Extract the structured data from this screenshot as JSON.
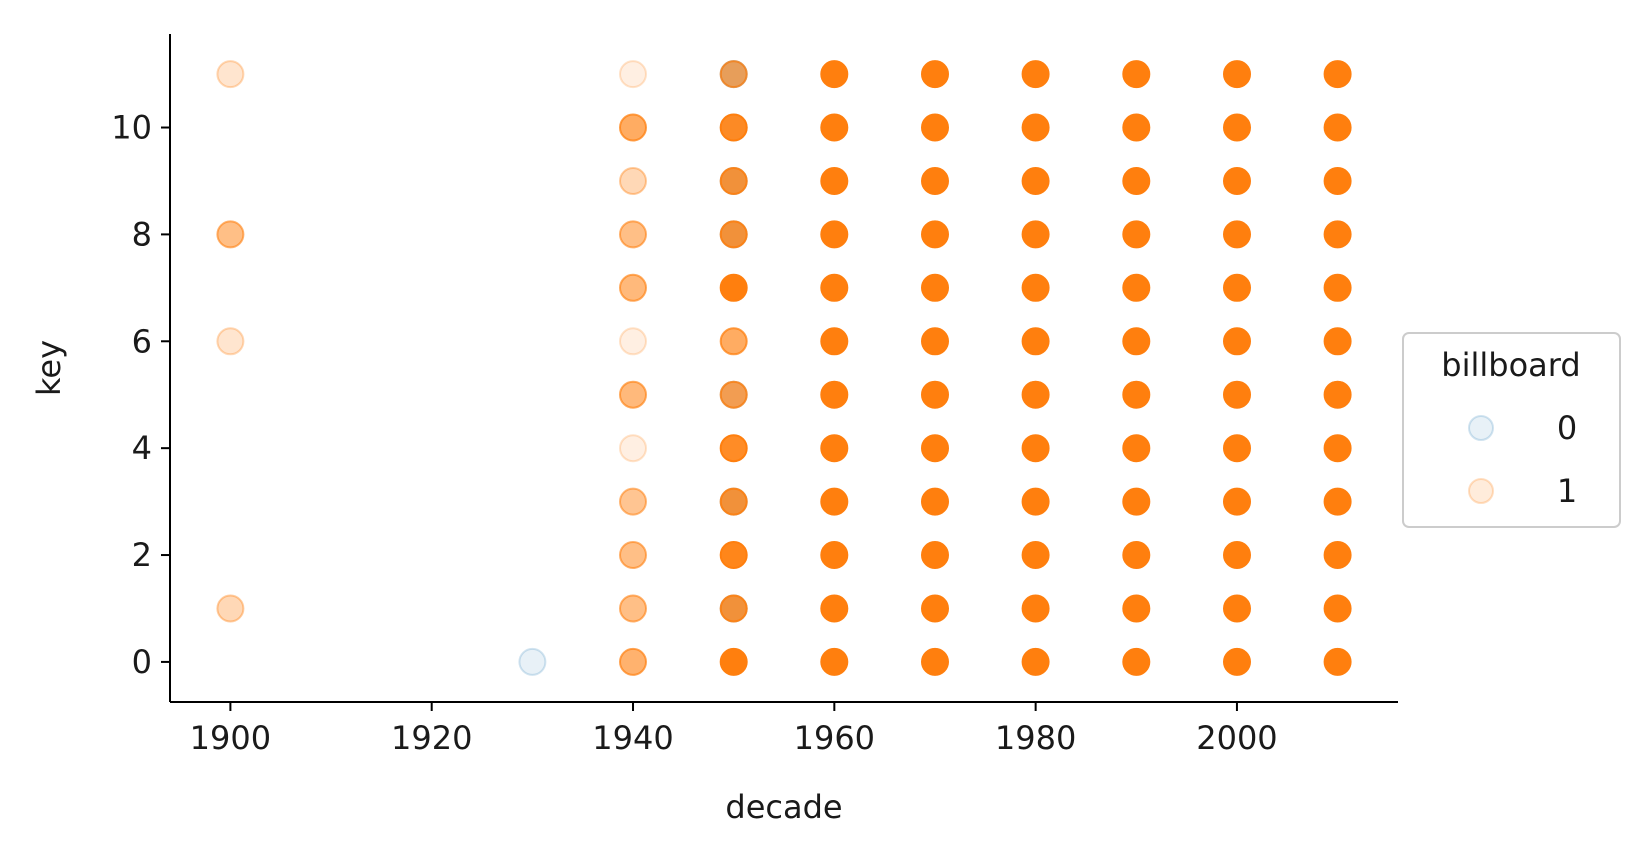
{
  "chart_data": {
    "type": "scatter",
    "xlabel": "decade",
    "ylabel": "key",
    "xlim": [
      1894,
      2016
    ],
    "ylim": [
      -0.75,
      11.75
    ],
    "xticks": [
      1900,
      1920,
      1940,
      1960,
      1980,
      2000
    ],
    "yticks": [
      0,
      2,
      4,
      6,
      8,
      10
    ],
    "grid": false,
    "legend": {
      "title": "billboard",
      "placement": "center-right outside"
    },
    "series": [
      {
        "name": "0",
        "color": "#1f77b4",
        "points": [
          {
            "x": 1930,
            "y": 0,
            "alpha": 0.1
          },
          {
            "x": 1950,
            "y": 1,
            "alpha": 0.3
          },
          {
            "x": 1950,
            "y": 3,
            "alpha": 0.3
          },
          {
            "x": 1950,
            "y": 5,
            "alpha": 0.2
          },
          {
            "x": 1950,
            "y": 8,
            "alpha": 0.3
          },
          {
            "x": 1950,
            "y": 9,
            "alpha": 0.3
          },
          {
            "x": 1950,
            "y": 10,
            "alpha": 0.15
          },
          {
            "x": 1950,
            "y": 11,
            "alpha": 0.3
          }
        ]
      },
      {
        "name": "1",
        "color": "#ff7f0e",
        "points": [
          {
            "x": 1900,
            "y": 1,
            "alpha": 0.3
          },
          {
            "x": 1900,
            "y": 6,
            "alpha": 0.2
          },
          {
            "x": 1900,
            "y": 8,
            "alpha": 0.5
          },
          {
            "x": 1900,
            "y": 11,
            "alpha": 0.2
          },
          {
            "x": 1940,
            "y": 0,
            "alpha": 0.6
          },
          {
            "x": 1940,
            "y": 1,
            "alpha": 0.5
          },
          {
            "x": 1940,
            "y": 2,
            "alpha": 0.5
          },
          {
            "x": 1940,
            "y": 3,
            "alpha": 0.45
          },
          {
            "x": 1940,
            "y": 4,
            "alpha": 0.12
          },
          {
            "x": 1940,
            "y": 5,
            "alpha": 0.55
          },
          {
            "x": 1940,
            "y": 6,
            "alpha": 0.12
          },
          {
            "x": 1940,
            "y": 7,
            "alpha": 0.55
          },
          {
            "x": 1940,
            "y": 8,
            "alpha": 0.5
          },
          {
            "x": 1940,
            "y": 9,
            "alpha": 0.3
          },
          {
            "x": 1940,
            "y": 10,
            "alpha": 0.65
          },
          {
            "x": 1940,
            "y": 11,
            "alpha": 0.12
          },
          {
            "x": 1950,
            "y": 0,
            "alpha": 1
          },
          {
            "x": 1950,
            "y": 1,
            "alpha": 0.8
          },
          {
            "x": 1950,
            "y": 2,
            "alpha": 0.95
          },
          {
            "x": 1950,
            "y": 3,
            "alpha": 0.8
          },
          {
            "x": 1950,
            "y": 4,
            "alpha": 0.9
          },
          {
            "x": 1950,
            "y": 5,
            "alpha": 0.7
          },
          {
            "x": 1950,
            "y": 6,
            "alpha": 0.65
          },
          {
            "x": 1950,
            "y": 7,
            "alpha": 1
          },
          {
            "x": 1950,
            "y": 8,
            "alpha": 0.8
          },
          {
            "x": 1950,
            "y": 9,
            "alpha": 0.8
          },
          {
            "x": 1950,
            "y": 10,
            "alpha": 0.9
          },
          {
            "x": 1950,
            "y": 11,
            "alpha": 0.65
          },
          {
            "x": 1960,
            "y": 0
          },
          {
            "x": 1960,
            "y": 1
          },
          {
            "x": 1960,
            "y": 2
          },
          {
            "x": 1960,
            "y": 3
          },
          {
            "x": 1960,
            "y": 4
          },
          {
            "x": 1960,
            "y": 5
          },
          {
            "x": 1960,
            "y": 6
          },
          {
            "x": 1960,
            "y": 7
          },
          {
            "x": 1960,
            "y": 8
          },
          {
            "x": 1960,
            "y": 9
          },
          {
            "x": 1960,
            "y": 10
          },
          {
            "x": 1960,
            "y": 11
          },
          {
            "x": 1970,
            "y": 0
          },
          {
            "x": 1970,
            "y": 1
          },
          {
            "x": 1970,
            "y": 2
          },
          {
            "x": 1970,
            "y": 3
          },
          {
            "x": 1970,
            "y": 4
          },
          {
            "x": 1970,
            "y": 5
          },
          {
            "x": 1970,
            "y": 6
          },
          {
            "x": 1970,
            "y": 7
          },
          {
            "x": 1970,
            "y": 8
          },
          {
            "x": 1970,
            "y": 9
          },
          {
            "x": 1970,
            "y": 10
          },
          {
            "x": 1970,
            "y": 11
          },
          {
            "x": 1980,
            "y": 0
          },
          {
            "x": 1980,
            "y": 1
          },
          {
            "x": 1980,
            "y": 2
          },
          {
            "x": 1980,
            "y": 3
          },
          {
            "x": 1980,
            "y": 4
          },
          {
            "x": 1980,
            "y": 5
          },
          {
            "x": 1980,
            "y": 6
          },
          {
            "x": 1980,
            "y": 7
          },
          {
            "x": 1980,
            "y": 8
          },
          {
            "x": 1980,
            "y": 9
          },
          {
            "x": 1980,
            "y": 10
          },
          {
            "x": 1980,
            "y": 11
          },
          {
            "x": 1990,
            "y": 0
          },
          {
            "x": 1990,
            "y": 1
          },
          {
            "x": 1990,
            "y": 2
          },
          {
            "x": 1990,
            "y": 3
          },
          {
            "x": 1990,
            "y": 4
          },
          {
            "x": 1990,
            "y": 5
          },
          {
            "x": 1990,
            "y": 6
          },
          {
            "x": 1990,
            "y": 7
          },
          {
            "x": 1990,
            "y": 8
          },
          {
            "x": 1990,
            "y": 9
          },
          {
            "x": 1990,
            "y": 10
          },
          {
            "x": 1990,
            "y": 11
          },
          {
            "x": 2000,
            "y": 0
          },
          {
            "x": 2000,
            "y": 1
          },
          {
            "x": 2000,
            "y": 2
          },
          {
            "x": 2000,
            "y": 3
          },
          {
            "x": 2000,
            "y": 4
          },
          {
            "x": 2000,
            "y": 5
          },
          {
            "x": 2000,
            "y": 6
          },
          {
            "x": 2000,
            "y": 7
          },
          {
            "x": 2000,
            "y": 8
          },
          {
            "x": 2000,
            "y": 9
          },
          {
            "x": 2000,
            "y": 10
          },
          {
            "x": 2000,
            "y": 11
          },
          {
            "x": 2010,
            "y": 0
          },
          {
            "x": 2010,
            "y": 1
          },
          {
            "x": 2010,
            "y": 2
          },
          {
            "x": 2010,
            "y": 3
          },
          {
            "x": 2010,
            "y": 4
          },
          {
            "x": 2010,
            "y": 5
          },
          {
            "x": 2010,
            "y": 6
          },
          {
            "x": 2010,
            "y": 7
          },
          {
            "x": 2010,
            "y": 8
          },
          {
            "x": 2010,
            "y": 9
          },
          {
            "x": 2010,
            "y": 10
          },
          {
            "x": 2010,
            "y": 11
          }
        ]
      }
    ]
  }
}
